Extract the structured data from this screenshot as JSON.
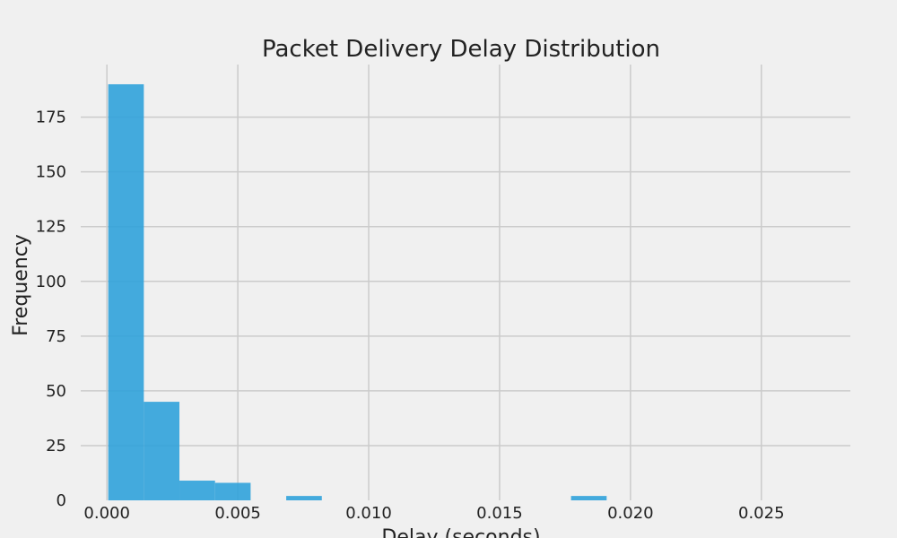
{
  "chart_data": {
    "type": "bar",
    "title": "Packet Delivery Delay Distribution",
    "xlabel": "Delay (seconds)",
    "ylabel": "Frequency",
    "xlim": [
      -0.001,
      0.0284
    ],
    "ylim": [
      0,
      199
    ],
    "xticks": [
      0.0,
      0.005,
      0.01,
      0.015,
      0.02,
      0.025
    ],
    "xtick_labels": [
      "0.000",
      "0.005",
      "0.010",
      "0.015",
      "0.020",
      "0.025"
    ],
    "yticks": [
      0,
      25,
      50,
      75,
      100,
      125,
      150,
      175
    ],
    "ytick_labels": [
      "0",
      "25",
      "50",
      "75",
      "100",
      "125",
      "150",
      "175"
    ],
    "grid": true,
    "bar_color": "#30a2da",
    "background": "#f0f0f0",
    "bins": [
      {
        "x0": 5e-05,
        "x1": 0.00141,
        "count": 190
      },
      {
        "x0": 0.00141,
        "x1": 0.00277,
        "count": 45
      },
      {
        "x0": 0.00277,
        "x1": 0.00413,
        "count": 9
      },
      {
        "x0": 0.00413,
        "x1": 0.00549,
        "count": 8
      },
      {
        "x0": 0.00685,
        "x1": 0.00821,
        "count": 2
      },
      {
        "x0": 0.01773,
        "x1": 0.01909,
        "count": 2
      }
    ]
  }
}
